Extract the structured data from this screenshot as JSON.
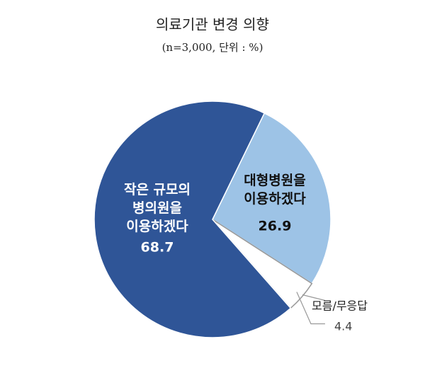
{
  "chart_data": {
    "type": "pie",
    "title": "의료기관 변경 의향",
    "subtitle": "(n=3,000, 단위 : %)",
    "categories": [
      "대형병원을\n이용하겠다",
      "모름/무응답",
      "작은 규모의\n병의원을\n이용하겠다"
    ],
    "values": [
      26.9,
      4.4,
      68.7
    ],
    "colors": [
      "#9dc3e6",
      "#ffffff",
      "#2f5597"
    ]
  }
}
